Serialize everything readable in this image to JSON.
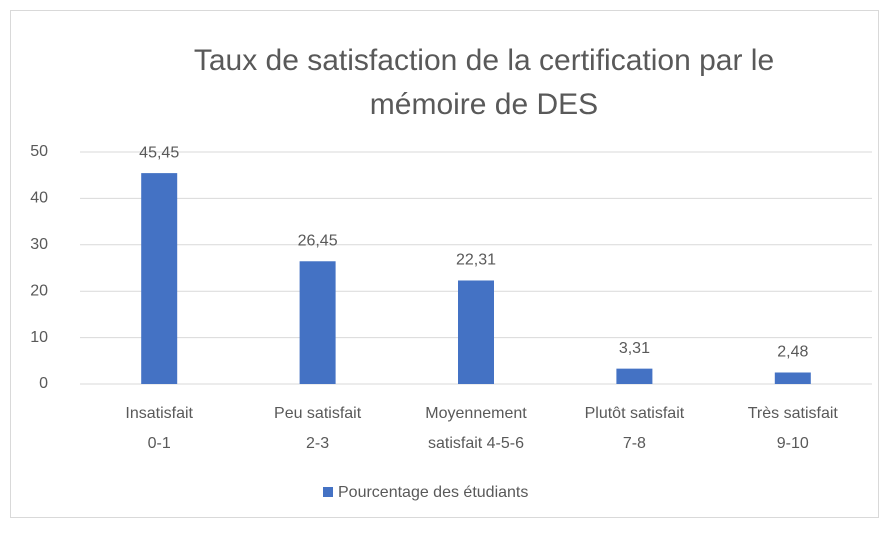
{
  "chart_data": {
    "type": "bar",
    "title": "Taux de satisfaction de la certification par le\nmémoire de DES",
    "categories": [
      "Insatisfait\n0-1",
      "Peu satisfait\n2-3",
      "Moyennement\nsatisfait 4-5-6",
      "Plutôt satisfait\n7-8",
      "Très satisfait\n9-10"
    ],
    "series": [
      {
        "name": "Pourcentage des étudiants",
        "color": "#4472c4",
        "values": [
          45.45,
          26.45,
          22.31,
          3.31,
          2.48
        ],
        "value_labels": [
          "45,45",
          "26,45",
          "22,31",
          "3,31",
          "2,48"
        ]
      }
    ],
    "ylim": [
      0,
      50
    ],
    "yticks": [
      0,
      10,
      20,
      30,
      40,
      50
    ],
    "grid": true,
    "legend": "bottom"
  }
}
